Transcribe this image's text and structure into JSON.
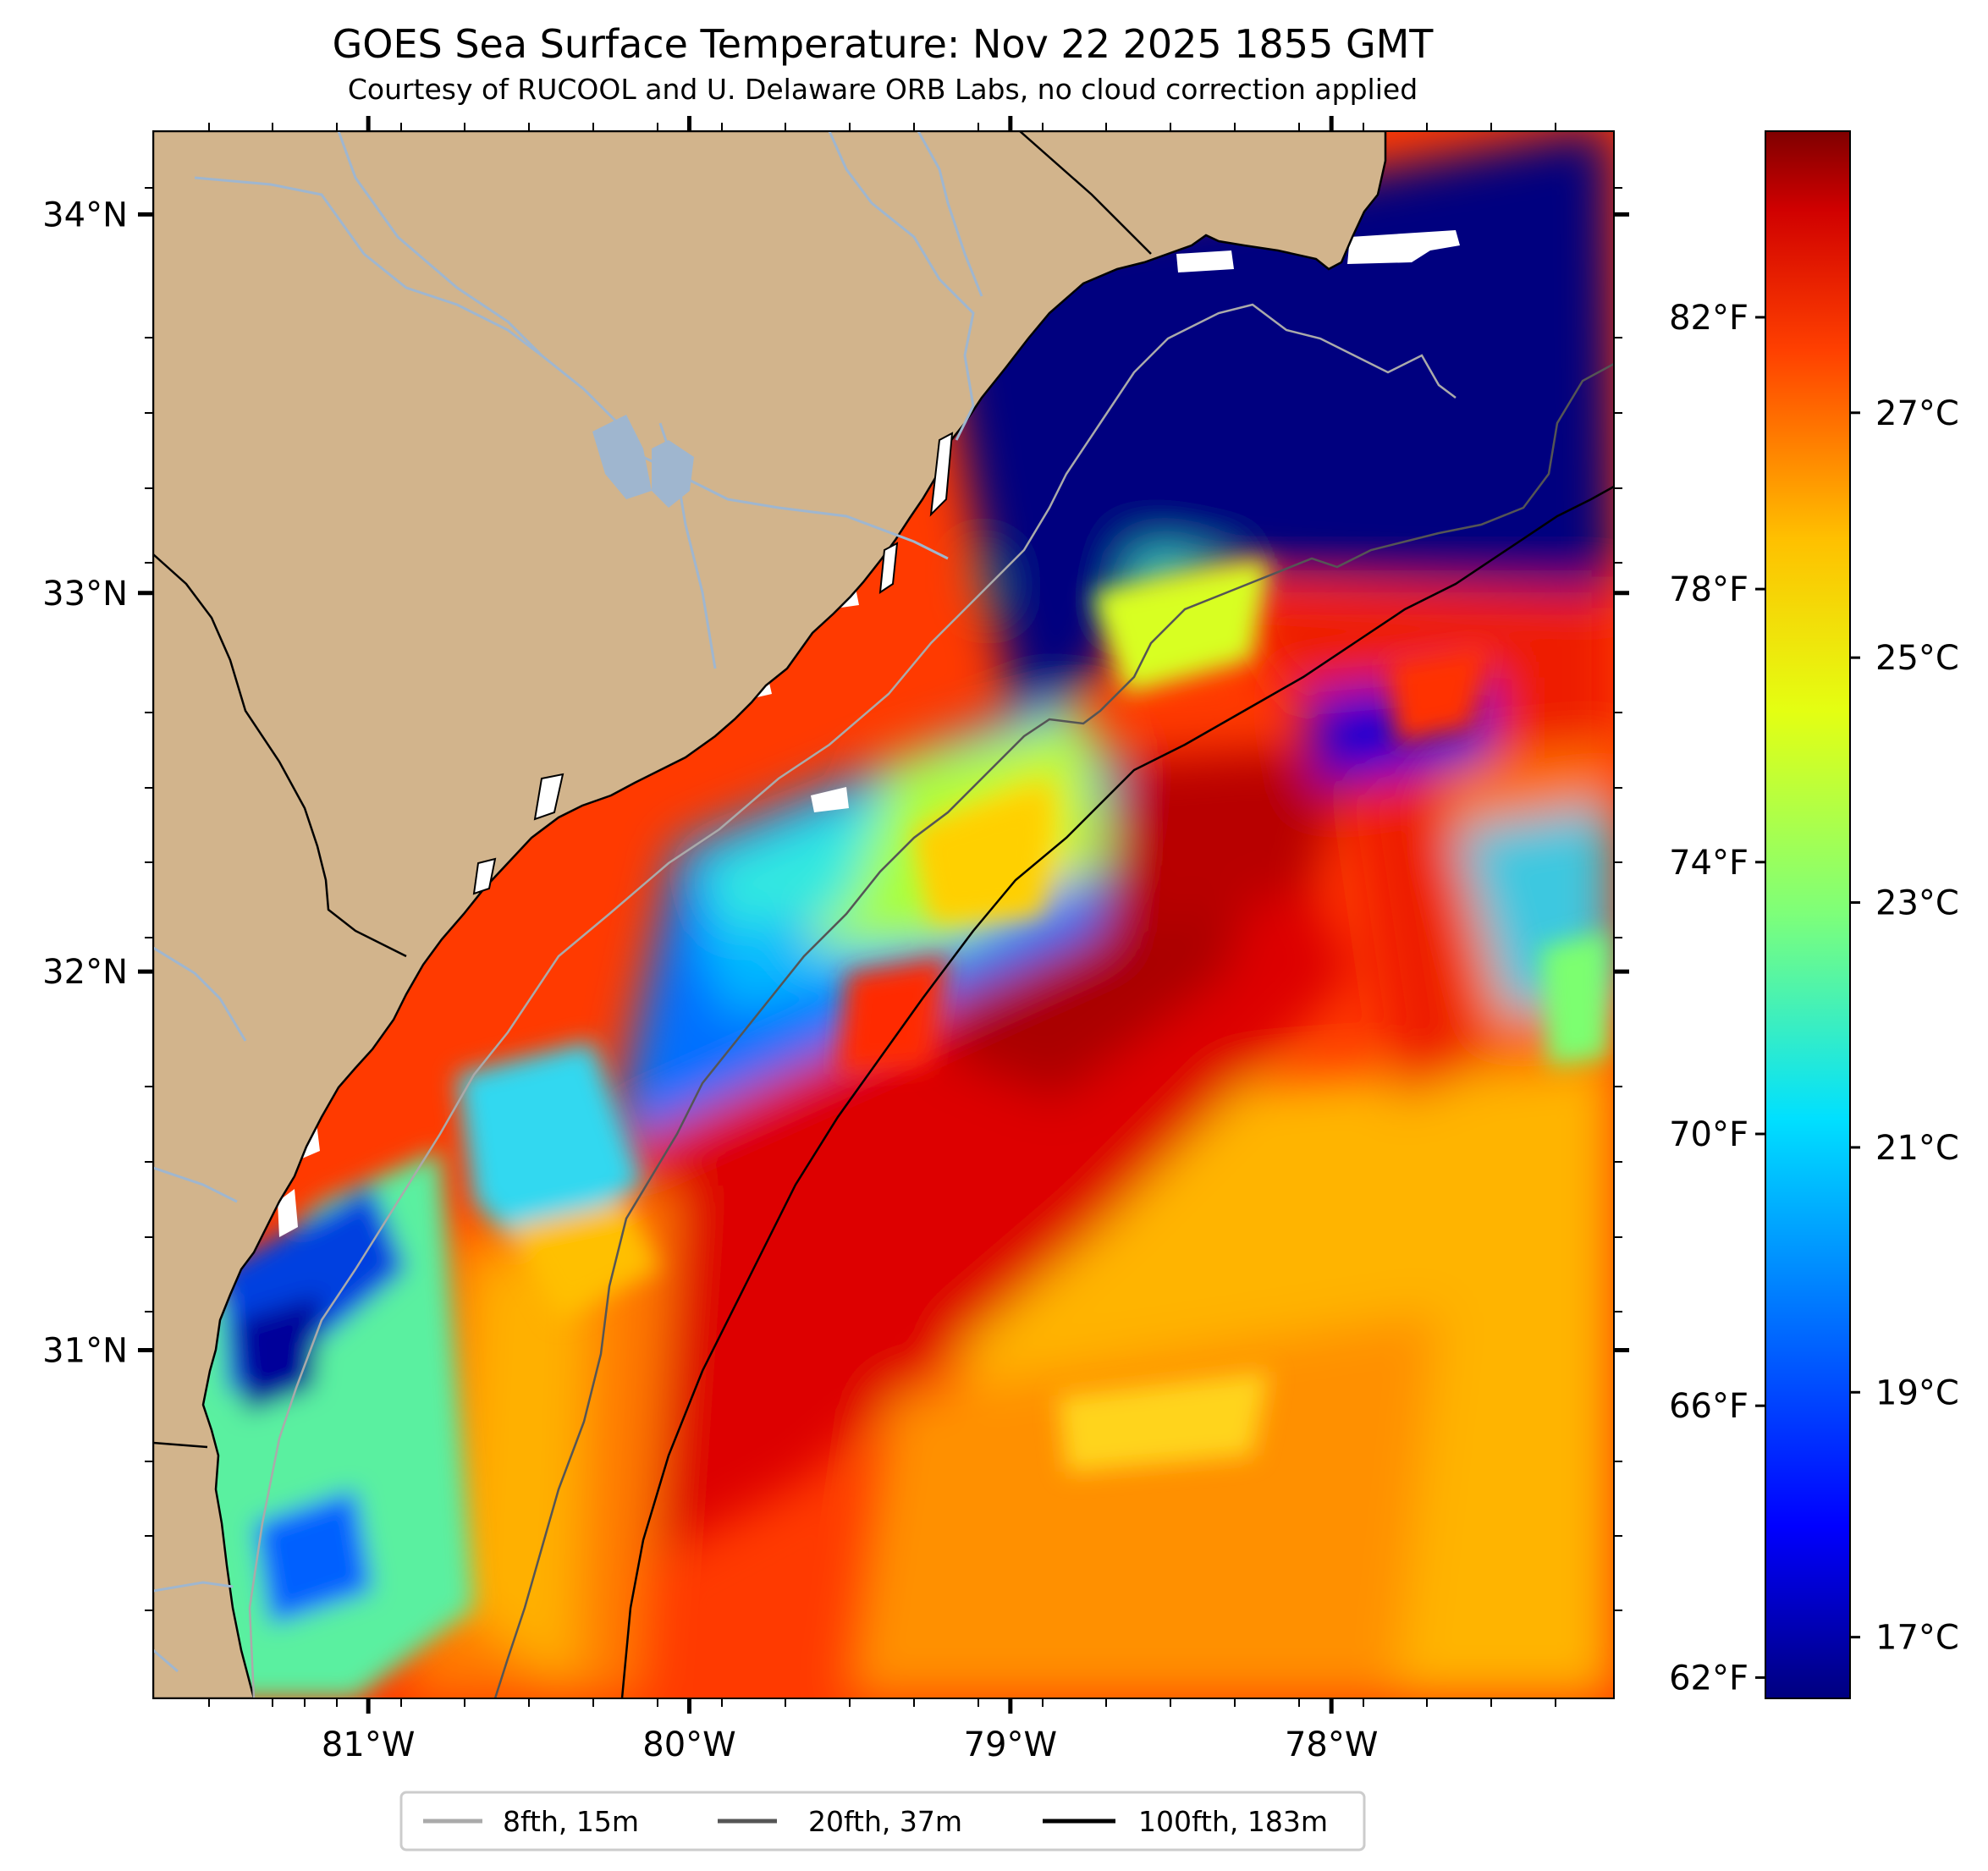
{
  "title": "GOES Sea Surface Temperature: Nov 22 2025 1855 GMT",
  "subtitle": "Courtesy of RUCOOL and U. Delaware ORB Labs, no cloud correction applied",
  "map": {
    "lon_range": [
      -81.67,
      -77.12
    ],
    "lat_range": [
      30.08,
      34.22
    ],
    "lon_ticks": [
      {
        "value": -81,
        "label": "81°W"
      },
      {
        "value": -80,
        "label": "80°W"
      },
      {
        "value": -79,
        "label": "79°W"
      },
      {
        "value": -78,
        "label": "78°W"
      }
    ],
    "lat_ticks": [
      {
        "value": 34,
        "label": "34°N"
      },
      {
        "value": 33,
        "label": "33°N"
      },
      {
        "value": 32,
        "label": "32°N"
      },
      {
        "value": 31,
        "label": "31°N"
      }
    ]
  },
  "colorbar": {
    "range_c": [
      16.5,
      29.3
    ],
    "fahrenheit_ticks": [
      {
        "value_c": 16.67,
        "label": "62°F"
      },
      {
        "value_c": 18.89,
        "label": "66°F"
      },
      {
        "value_c": 21.11,
        "label": "70°F"
      },
      {
        "value_c": 23.33,
        "label": "74°F"
      },
      {
        "value_c": 25.56,
        "label": "78°F"
      },
      {
        "value_c": 27.78,
        "label": "82°F"
      }
    ],
    "celsius_ticks": [
      {
        "value_c": 17,
        "label": "17°C"
      },
      {
        "value_c": 19,
        "label": "19°C"
      },
      {
        "value_c": 21,
        "label": "21°C"
      },
      {
        "value_c": 23,
        "label": "23°C"
      },
      {
        "value_c": 25,
        "label": "25°C"
      },
      {
        "value_c": 27,
        "label": "27°C"
      }
    ],
    "colors": [
      "#00007f",
      "#0000ff",
      "#0080ff",
      "#00e0ff",
      "#7dff7a",
      "#e4ff12",
      "#ffc000",
      "#ff4000",
      "#d00000",
      "#7f0000"
    ]
  },
  "legend": [
    {
      "label": "8fth, 15m",
      "color": "#aaaaaa"
    },
    {
      "label": "20fth, 37m",
      "color": "#555555"
    },
    {
      "label": "100fth, 183m",
      "color": "#000000"
    }
  ],
  "colors": {
    "land": "#d2b48c",
    "river": "#9fb6cf",
    "cloud": "#ffffff"
  }
}
